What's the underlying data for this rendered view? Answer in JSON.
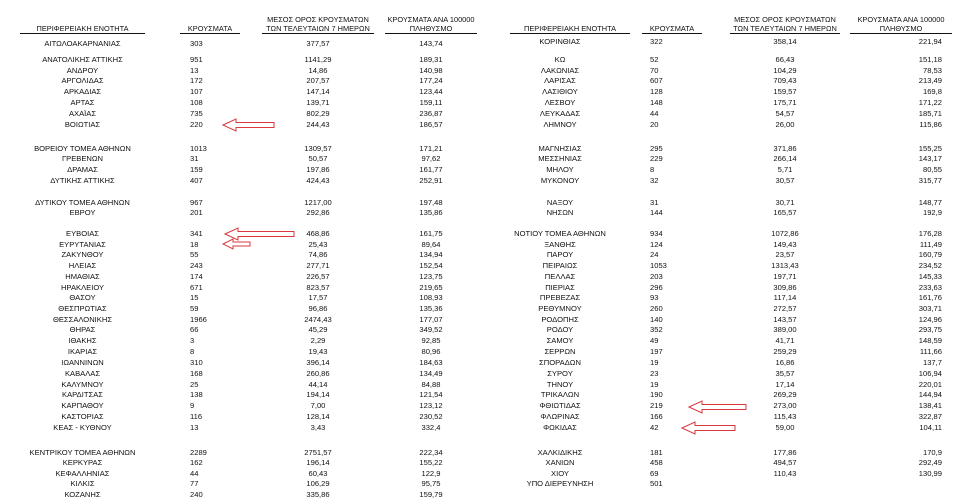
{
  "headers": {
    "region": "ΠΕΡΙΦΕΡΕΙΑΚΗ ΕΝΟΤΗΤΑ",
    "cases": "ΚΡΟΥΣΜΑΤΑ",
    "avg7_line1": "ΜΕΣΟΣ ΟΡΟΣ ΚΡΟΥΣΜΑΤΩΝ",
    "avg7_line2": "ΤΩΝ ΤΕΛΕΥΤΑΙΩΝ 7 ΗΜΕΡΩΝ",
    "per100k_line1": "ΚΡΟΥΣΜΑΤΑ ΑΝΑ 100000",
    "per100k_line2": "ΠΛΗΘΥΣΜΟ"
  },
  "left_rows": [
    {
      "region": "ΑΙΤΩΛΟΑΚΑΡΝΑΝΙΑΣ",
      "cases": "303",
      "avg7": "377,57",
      "per100k": "143,74"
    },
    {
      "region": "ΑΝΑΤΟΛΙΚΗΣ ΑΤΤΙΚΗΣ",
      "cases": "951",
      "avg7": "1141,29",
      "per100k": "189,31"
    },
    {
      "region": "ΑΝΔΡΟΥ",
      "cases": "13",
      "avg7": "14,86",
      "per100k": "140,98"
    },
    {
      "region": "ΑΡΓΟΛΙΔΑΣ",
      "cases": "172",
      "avg7": "207,57",
      "per100k": "177,24"
    },
    {
      "region": "ΑΡΚΑΔΙΑΣ",
      "cases": "107",
      "avg7": "147,14",
      "per100k": "123,44"
    },
    {
      "region": "ΑΡΤΑΣ",
      "cases": "108",
      "avg7": "139,71",
      "per100k": "159,11"
    },
    {
      "region": "ΑΧΑΪΑΣ",
      "cases": "735",
      "avg7": "802,29",
      "per100k": "236,87"
    },
    {
      "region": "ΒΟΙΩΤΙΑΣ",
      "cases": "220",
      "avg7": "244,43",
      "per100k": "186,57"
    },
    {
      "region": "ΒΟΡΕΙΟΥ ΤΟΜΕΑ ΑΘΗΝΩΝ",
      "cases": "1013",
      "avg7": "1309,57",
      "per100k": "171,21"
    },
    {
      "region": "ΓΡΕΒΕΝΩΝ",
      "cases": "31",
      "avg7": "50,57",
      "per100k": "97,62"
    },
    {
      "region": "ΔΡΑΜΑΣ",
      "cases": "159",
      "avg7": "197,86",
      "per100k": "161,77"
    },
    {
      "region": "ΔΥΤΙΚΗΣ ΑΤΤΙΚΗΣ",
      "cases": "407",
      "avg7": "424,43",
      "per100k": "252,91"
    },
    {
      "region": "ΔΥΤΙΚΟΥ ΤΟΜΕΑ ΑΘΗΝΩΝ",
      "cases": "967",
      "avg7": "1217,00",
      "per100k": "197,48"
    },
    {
      "region": "ΕΒΡΟΥ",
      "cases": "201",
      "avg7": "292,86",
      "per100k": "135,86"
    },
    {
      "region": "ΕΥΒΟΙΑΣ",
      "cases": "341",
      "avg7": "468,86",
      "per100k": "161,75"
    },
    {
      "region": "ΕΥΡΥΤΑΝΙΑΣ",
      "cases": "18",
      "avg7": "25,43",
      "per100k": "89,64"
    },
    {
      "region": "ΖΑΚΥΝΘΟΥ",
      "cases": "55",
      "avg7": "74,86",
      "per100k": "134,94"
    },
    {
      "region": "ΗΛΕΙΑΣ",
      "cases": "243",
      "avg7": "277,71",
      "per100k": "152,54"
    },
    {
      "region": "ΗΜΑΘΙΑΣ",
      "cases": "174",
      "avg7": "226,57",
      "per100k": "123,75"
    },
    {
      "region": "ΗΡΑΚΛΕΙΟΥ",
      "cases": "671",
      "avg7": "823,57",
      "per100k": "219,65"
    },
    {
      "region": "ΘΑΣΟΥ",
      "cases": "15",
      "avg7": "17,57",
      "per100k": "108,93"
    },
    {
      "region": "ΘΕΣΠΡΩΤΙΑΣ",
      "cases": "59",
      "avg7": "96,86",
      "per100k": "135,36"
    },
    {
      "region": "ΘΕΣΣΑΛΟΝΙΚΗΣ",
      "cases": "1966",
      "avg7": "2474,43",
      "per100k": "177,07"
    },
    {
      "region": "ΘΗΡΑΣ",
      "cases": "66",
      "avg7": "45,29",
      "per100k": "349,52"
    },
    {
      "region": "ΙΘΑΚΗΣ",
      "cases": "3",
      "avg7": "2,29",
      "per100k": "92,85"
    },
    {
      "region": "ΙΚΑΡΙΑΣ",
      "cases": "8",
      "avg7": "19,43",
      "per100k": "80,96"
    },
    {
      "region": "ΙΩΑΝΝΙΝΩΝ",
      "cases": "310",
      "avg7": "396,14",
      "per100k": "184,63"
    },
    {
      "region": "ΚΑΒΑΛΑΣ",
      "cases": "168",
      "avg7": "260,86",
      "per100k": "134,49"
    },
    {
      "region": "ΚΑΛΥΜΝΟΥ",
      "cases": "25",
      "avg7": "44,14",
      "per100k": "84,88"
    },
    {
      "region": "ΚΑΡΔΙΤΣΑΣ",
      "cases": "138",
      "avg7": "194,14",
      "per100k": "121,54"
    },
    {
      "region": "ΚΑΡΠΑΘΟΥ",
      "cases": "9",
      "avg7": "7,00",
      "per100k": "123,12"
    },
    {
      "region": "ΚΑΣΤΟΡΙΑΣ",
      "cases": "116",
      "avg7": "128,14",
      "per100k": "230,52"
    },
    {
      "region": "ΚΕΑΣ - ΚΥΘΝΟΥ",
      "cases": "13",
      "avg7": "3,43",
      "per100k": "332,4"
    },
    {
      "region": "ΚΕΝΤΡΙΚΟΥ ΤΟΜΕΑ ΑΘΗΝΩΝ",
      "cases": "2289",
      "avg7": "2751,57",
      "per100k": "222,34"
    },
    {
      "region": "ΚΕΡΚΥΡΑΣ",
      "cases": "162",
      "avg7": "196,14",
      "per100k": "155,22"
    },
    {
      "region": "ΚΕΦΑΛΛΗΝΙΑΣ",
      "cases": "44",
      "avg7": "60,43",
      "per100k": "122,9"
    },
    {
      "region": "ΚΙΛΚΙΣ",
      "cases": "77",
      "avg7": "106,29",
      "per100k": "95,75"
    },
    {
      "region": "ΚΟΖΑΝΗΣ",
      "cases": "240",
      "avg7": "335,86",
      "per100k": "159,79"
    }
  ],
  "right_rows": [
    {
      "region": "ΚΟΡΙΝΘΙΑΣ",
      "cases": "322",
      "avg7": "358,14",
      "per100k": "221,94"
    },
    {
      "region": "ΚΩ",
      "cases": "52",
      "avg7": "66,43",
      "per100k": "151,18"
    },
    {
      "region": "ΛΑΚΩΝΙΑΣ",
      "cases": "70",
      "avg7": "104,29",
      "per100k": "78,53"
    },
    {
      "region": "ΛΑΡΙΣΑΣ",
      "cases": "607",
      "avg7": "709,43",
      "per100k": "213,49"
    },
    {
      "region": "ΛΑΣΙΘΙΟΥ",
      "cases": "128",
      "avg7": "159,57",
      "per100k": "169,8"
    },
    {
      "region": "ΛΕΣΒΟΥ",
      "cases": "148",
      "avg7": "175,71",
      "per100k": "171,22"
    },
    {
      "region": "ΛΕΥΚΑΔΑΣ",
      "cases": "44",
      "avg7": "54,57",
      "per100k": "185,71"
    },
    {
      "region": "ΛΗΜΝΟΥ",
      "cases": "20",
      "avg7": "26,00",
      "per100k": "115,86"
    },
    {
      "region": "ΜΑΓΝΗΣΙΑΣ",
      "cases": "295",
      "avg7": "371,86",
      "per100k": "155,25"
    },
    {
      "region": "ΜΕΣΣΗΝΙΑΣ",
      "cases": "229",
      "avg7": "266,14",
      "per100k": "143,17"
    },
    {
      "region": "ΜΗΛΟΥ",
      "cases": "8",
      "avg7": "5,71",
      "per100k": "80,55"
    },
    {
      "region": "ΜΥΚΟΝΟΥ",
      "cases": "32",
      "avg7": "30,57",
      "per100k": "315,77"
    },
    {
      "region": "ΝΑΞΟΥ",
      "cases": "31",
      "avg7": "30,71",
      "per100k": "148,77"
    },
    {
      "region": "ΝΗΣΩΝ",
      "cases": "144",
      "avg7": "165,57",
      "per100k": "192,9"
    },
    {
      "region": "ΝΟΤΙΟΥ ΤΟΜΕΑ ΑΘΗΝΩΝ",
      "cases": "934",
      "avg7": "1072,86",
      "per100k": "176,28"
    },
    {
      "region": "ΞΑΝΘΗΣ",
      "cases": "124",
      "avg7": "149,43",
      "per100k": "111,49"
    },
    {
      "region": "ΠΑΡΟΥ",
      "cases": "24",
      "avg7": "23,57",
      "per100k": "160,79"
    },
    {
      "region": "ΠΕΙΡΑΙΩΣ",
      "cases": "1053",
      "avg7": "1313,43",
      "per100k": "234,52"
    },
    {
      "region": "ΠΕΛΛΑΣ",
      "cases": "203",
      "avg7": "197,71",
      "per100k": "145,33"
    },
    {
      "region": "ΠΙΕΡΙΑΣ",
      "cases": "296",
      "avg7": "309,86",
      "per100k": "233,63"
    },
    {
      "region": "ΠΡΕΒΕΖΑΣ",
      "cases": "93",
      "avg7": "117,14",
      "per100k": "161,76"
    },
    {
      "region": "ΡΕΘΥΜΝΟΥ",
      "cases": "260",
      "avg7": "272,57",
      "per100k": "303,71"
    },
    {
      "region": "ΡΟΔΟΠΗΣ",
      "cases": "140",
      "avg7": "143,57",
      "per100k": "124,96"
    },
    {
      "region": "ΡΟΔΟΥ",
      "cases": "352",
      "avg7": "389,00",
      "per100k": "293,75"
    },
    {
      "region": "ΣΑΜΟΥ",
      "cases": "49",
      "avg7": "41,71",
      "per100k": "148,59"
    },
    {
      "region": "ΣΕΡΡΩΝ",
      "cases": "197",
      "avg7": "259,29",
      "per100k": "111,66"
    },
    {
      "region": "ΣΠΟΡΑΔΩΝ",
      "cases": "19",
      "avg7": "16,86",
      "per100k": "137,7"
    },
    {
      "region": "ΣΥΡΟΥ",
      "cases": "23",
      "avg7": "35,57",
      "per100k": "106,94"
    },
    {
      "region": "ΤΗΝΟΥ",
      "cases": "19",
      "avg7": "17,14",
      "per100k": "220,01"
    },
    {
      "region": "ΤΡΙΚΑΛΩΝ",
      "cases": "190",
      "avg7": "269,29",
      "per100k": "144,94"
    },
    {
      "region": "ΦΘΙΩΤΙΔΑΣ",
      "cases": "219",
      "avg7": "273,00",
      "per100k": "138,41"
    },
    {
      "region": "ΦΛΩΡΙΝΑΣ",
      "cases": "166",
      "avg7": "115,43",
      "per100k": "322,87"
    },
    {
      "region": "ΦΩΚΙΔΑΣ",
      "cases": "42",
      "avg7": "59,00",
      "per100k": "104,11"
    },
    {
      "region": "ΧΑΛΚΙΔΙΚΗΣ",
      "cases": "181",
      "avg7": "177,86",
      "per100k": "170,9"
    },
    {
      "region": "ΧΑΝΙΩΝ",
      "cases": "458",
      "avg7": "494,57",
      "per100k": "292,49"
    },
    {
      "region": "ΧΙΟΥ",
      "cases": "69",
      "avg7": "110,43",
      "per100k": "130,99"
    },
    {
      "region": "ΥΠΟ ΔΙΕΡΕΥΝΗΣΗ",
      "cases": "501",
      "avg7": "",
      "per100k": ""
    }
  ],
  "colors": {
    "text": "#111111",
    "arrow": "#d9383e",
    "background": "#ffffff"
  },
  "annotations": [
    {
      "icon": "red-arrow-icon",
      "points_to": "ΒΟΙΩΤΙΑΣ"
    },
    {
      "icon": "red-arrow-icon",
      "points_to": "ΕΥΒΟΙΑΣ"
    },
    {
      "icon": "red-arrow-icon",
      "points_to": "ΕΥΡΥΤΑΝΙΑΣ"
    },
    {
      "icon": "red-arrow-icon",
      "points_to": "ΦΘΙΩΤΙΔΑΣ"
    },
    {
      "icon": "red-arrow-icon",
      "points_to": "ΦΩΚΙΔΑΣ"
    }
  ]
}
